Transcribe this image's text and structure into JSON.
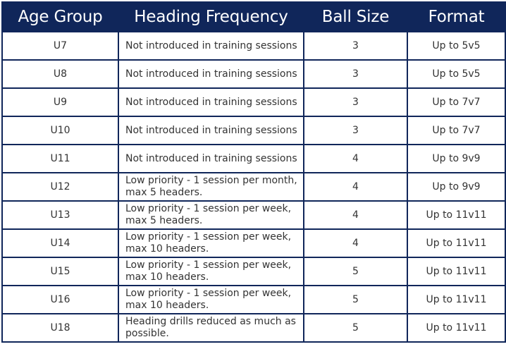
{
  "table": {
    "headers": [
      "Age Group",
      "Heading Frequency",
      "Ball Size",
      "Format"
    ],
    "rows": [
      {
        "age": "U7",
        "freq": "Not introduced in training sessions",
        "ball": "3",
        "format": "Up to 5v5"
      },
      {
        "age": "U8",
        "freq": "Not introduced in training sessions",
        "ball": "3",
        "format": "Up to 5v5"
      },
      {
        "age": "U9",
        "freq": "Not introduced in training sessions",
        "ball": "3",
        "format": "Up to 7v7"
      },
      {
        "age": "U10",
        "freq": "Not introduced in training sessions",
        "ball": "3",
        "format": "Up to 7v7"
      },
      {
        "age": "U11",
        "freq": "Not introduced in training sessions",
        "ball": "4",
        "format": "Up to 9v9"
      },
      {
        "age": "U12",
        "freq": "Low priority - 1 session per month, max 5 headers.",
        "ball": "4",
        "format": "Up to 9v9"
      },
      {
        "age": "U13",
        "freq": "Low priority - 1 session per week, max 5 headers.",
        "ball": "4",
        "format": "Up to 11v11"
      },
      {
        "age": "U14",
        "freq": "Low priority - 1 session per week, max 10 headers.",
        "ball": "4",
        "format": "Up to 11v11"
      },
      {
        "age": "U15",
        "freq": "Low priority - 1 session per week, max 10 headers.",
        "ball": "5",
        "format": "Up to 11v11"
      },
      {
        "age": "U16",
        "freq": "Low priority - 1 session per week, max 10 headers.",
        "ball": "5",
        "format": "Up to 11v11"
      },
      {
        "age": "U18",
        "freq": "Heading drills reduced as much as possible.",
        "ball": "5",
        "format": "Up to 11v11"
      }
    ]
  },
  "colors": {
    "header_bg": "#10265a",
    "header_text": "#ffffff",
    "border": "#10265a",
    "cell_text": "#333333"
  }
}
